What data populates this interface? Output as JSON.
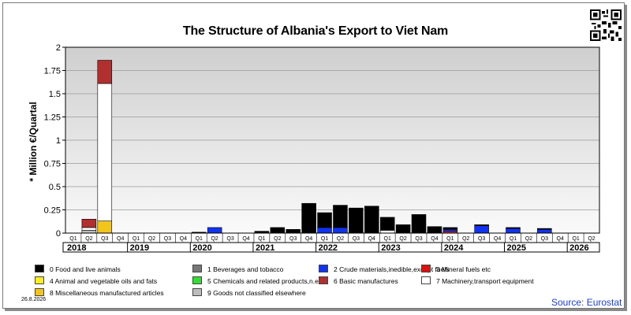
{
  "chart_data": {
    "type": "bar",
    "stacked": true,
    "title": "The Structure of Albania's Export to Viet Nam",
    "ylabel": "* Million €/Quartal",
    "xlabel": "",
    "ylim": [
      0,
      2
    ],
    "yticks": [
      "0",
      "0.25",
      "0.5",
      "0.75",
      "1",
      "1.25",
      "1.5",
      "1.75",
      "2"
    ],
    "grid": true,
    "legend_position": "bottom",
    "years": [
      "2018",
      "2019",
      "2020",
      "2021",
      "2022",
      "2023",
      "2024",
      "2025",
      "2026"
    ],
    "quarter_labels": [
      "Q1",
      "Q2",
      "Q3",
      "Q4"
    ],
    "quarters_last_year": 2,
    "series": [
      {
        "name": "9 Goods not classified elsewhere",
        "color": "#bdbdbd",
        "values": [
          0,
          0.03,
          0,
          0,
          0,
          0,
          0,
          0,
          0,
          0,
          0,
          0,
          0,
          0,
          0,
          0,
          0,
          0,
          0,
          0,
          0,
          0,
          0,
          0,
          0,
          0,
          0,
          0,
          0,
          0,
          0,
          0,
          0,
          0
        ]
      },
      {
        "name": "8 Miscellaneous manufactured articles",
        "color": "#f2c51d",
        "values": [
          0,
          0,
          0.13,
          0,
          0,
          0,
          0,
          0,
          0,
          0,
          0,
          0,
          0,
          0,
          0,
          0,
          0,
          0,
          0,
          0,
          0,
          0,
          0,
          0,
          0,
          0,
          0,
          0,
          0,
          0,
          0,
          0,
          0,
          0
        ]
      },
      {
        "name": "7 Machinery,transport equipment",
        "color": "#ffffff",
        "values": [
          0,
          0.03,
          1.48,
          0,
          0,
          0,
          0,
          0,
          0,
          0,
          0,
          0,
          0,
          0,
          0,
          0,
          0,
          0,
          0,
          0,
          0.03,
          0,
          0,
          0,
          0,
          0,
          0,
          0,
          0,
          0,
          0,
          0,
          0,
          0
        ]
      },
      {
        "name": "6 Basic manufactures",
        "color": "#b03030",
        "values": [
          0,
          0.09,
          0.25,
          0,
          0,
          0,
          0,
          0,
          0,
          0,
          0,
          0,
          0,
          0,
          0,
          0,
          0,
          0,
          0,
          0,
          0,
          0,
          0,
          0,
          0.02,
          0,
          0,
          0,
          0,
          0,
          0,
          0,
          0,
          0
        ]
      },
      {
        "name": "5 Chemicals and related products,n.e.s.",
        "color": "#33dd33",
        "values": [
          0,
          0,
          0,
          0,
          0,
          0,
          0,
          0,
          0,
          0,
          0,
          0,
          0,
          0,
          0,
          0,
          0,
          0,
          0,
          0,
          0,
          0,
          0,
          0,
          0,
          0,
          0,
          0,
          0,
          0,
          0,
          0,
          0,
          0
        ]
      },
      {
        "name": "4 Animal and vegetable oils and fats",
        "color": "#ffee22",
        "values": [
          0,
          0,
          0,
          0,
          0,
          0,
          0,
          0,
          0,
          0,
          0,
          0,
          0,
          0,
          0,
          0,
          0,
          0,
          0,
          0,
          0,
          0,
          0,
          0,
          0,
          0,
          0,
          0,
          0,
          0,
          0,
          0,
          0,
          0
        ]
      },
      {
        "name": "3 Mineral fuels etc",
        "color": "#dd1111",
        "values": [
          0,
          0,
          0,
          0,
          0,
          0,
          0,
          0,
          0,
          0,
          0,
          0,
          0,
          0,
          0,
          0,
          0,
          0,
          0,
          0,
          0,
          0,
          0,
          0,
          0,
          0,
          0,
          0,
          0,
          0,
          0,
          0,
          0,
          0
        ]
      },
      {
        "name": "2 Crude materials,inedible,except fuels",
        "color": "#1133ee",
        "values": [
          0,
          0,
          0,
          0,
          0,
          0,
          0,
          0,
          0,
          0.06,
          0,
          0,
          0,
          0,
          0,
          0,
          0.06,
          0.06,
          0,
          0,
          0,
          0,
          0,
          0,
          0.02,
          0,
          0.08,
          0,
          0.05,
          0,
          0.04,
          0,
          0,
          0
        ]
      },
      {
        "name": "1 Beverages and tobacco",
        "color": "#777777",
        "values": [
          0,
          0,
          0,
          0,
          0,
          0,
          0,
          0,
          0,
          0,
          0,
          0,
          0,
          0,
          0,
          0,
          0,
          0,
          0,
          0,
          0,
          0,
          0,
          0,
          0,
          0,
          0,
          0,
          0,
          0,
          0,
          0,
          0,
          0
        ]
      },
      {
        "name": "0 Food and live animals",
        "color": "#000000",
        "values": [
          0,
          0,
          0,
          0,
          0,
          0,
          0,
          0,
          0.01,
          0,
          0,
          0,
          0.02,
          0.06,
          0.04,
          0.32,
          0.16,
          0.24,
          0.27,
          0.29,
          0.14,
          0.09,
          0.2,
          0.07,
          0.02,
          0,
          0.01,
          0,
          0.01,
          0,
          0.01,
          0,
          0,
          0
        ]
      }
    ]
  },
  "source": "Source: Eurostat",
  "date": "26.8.2026"
}
